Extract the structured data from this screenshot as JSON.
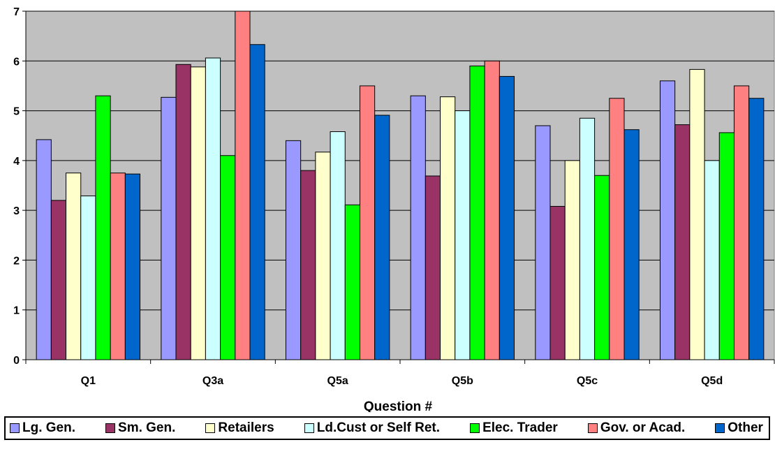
{
  "chart_data": {
    "type": "bar",
    "title": "",
    "xlabel": "Question #",
    "ylabel": "",
    "ylim": [
      0,
      7
    ],
    "yticks": [
      0,
      1,
      2,
      3,
      4,
      5,
      6,
      7
    ],
    "grid": true,
    "legend_position": "bottom",
    "plot_background": "#c0c0c0",
    "categories": [
      "Q1",
      "Q3a",
      "Q5a",
      "Q5b",
      "Q5c",
      "Q5d"
    ],
    "series": [
      {
        "name": "Lg. Gen.",
        "color": "#9999ff",
        "values": [
          4.42,
          5.27,
          4.4,
          5.3,
          4.7,
          5.6
        ]
      },
      {
        "name": "Sm. Gen.",
        "color": "#993366",
        "values": [
          3.2,
          5.93,
          3.8,
          3.69,
          3.08,
          4.72
        ]
      },
      {
        "name": "Retailers",
        "color": "#ffffcc",
        "values": [
          3.75,
          5.88,
          4.17,
          5.28,
          4.0,
          5.83
        ]
      },
      {
        "name": "Ld.Cust or Self Ret.",
        "color": "#ccffff",
        "values": [
          3.29,
          6.06,
          4.58,
          5.0,
          4.85,
          4.0
        ]
      },
      {
        "name": "Elec. Trader",
        "color": "#00ff00",
        "values": [
          5.3,
          4.1,
          3.11,
          5.9,
          3.7,
          4.56
        ]
      },
      {
        "name": "Gov. or Acad.",
        "color": "#ff8080",
        "values": [
          3.75,
          7.0,
          5.5,
          6.0,
          5.25,
          5.5
        ]
      },
      {
        "name": "Other",
        "color": "#0066cc",
        "values": [
          3.73,
          6.33,
          4.91,
          5.69,
          4.62,
          5.25
        ]
      }
    ]
  }
}
